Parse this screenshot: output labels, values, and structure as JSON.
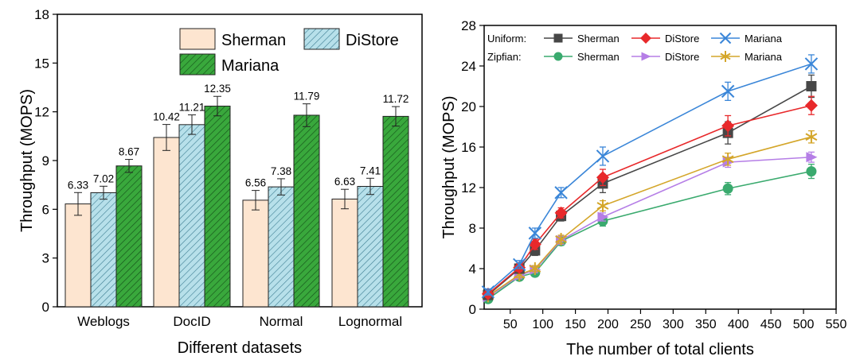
{
  "chart_data": [
    {
      "type": "bar",
      "title": "",
      "xlabel": "Different datasets",
      "ylabel": "Throughput (MOPS)",
      "categories": [
        "Weblogs",
        "DocID",
        "Normal",
        "Lognormal"
      ],
      "ylim": [
        0,
        18
      ],
      "yticks": [
        "0",
        "3",
        "6",
        "9",
        "12",
        "15",
        "18"
      ],
      "legend_position": "top-right",
      "series": [
        {
          "name": "Sherman",
          "values": [
            6.33,
            10.42,
            6.56,
            6.63
          ],
          "labels": [
            "6.33",
            "10.42",
            "6.56",
            "6.63"
          ],
          "errors": [
            0.7,
            0.8,
            0.6,
            0.6
          ],
          "color": "#fde5d0",
          "pattern": "none"
        },
        {
          "name": "DiStore",
          "values": [
            7.02,
            11.21,
            7.38,
            7.41
          ],
          "labels": [
            "7.02",
            "11.21",
            "7.38",
            "7.41"
          ],
          "errors": [
            0.4,
            0.6,
            0.5,
            0.5
          ],
          "color": "#b7e0ea",
          "pattern": "hatch"
        },
        {
          "name": "Mariana",
          "values": [
            8.67,
            12.35,
            11.79,
            11.72
          ],
          "labels": [
            "8.67",
            "12.35",
            "11.79",
            "11.72"
          ],
          "errors": [
            0.4,
            0.6,
            0.7,
            0.6
          ],
          "color": "#39a83c",
          "pattern": "hatch"
        }
      ]
    },
    {
      "type": "line",
      "title": "",
      "xlabel": "The number of total clients",
      "ylabel": "Throughput (MOPS)",
      "x": [
        16,
        64,
        88,
        128,
        192,
        384,
        512
      ],
      "xlim": [
        10,
        550
      ],
      "xticks": [
        "50",
        "100",
        "150",
        "200",
        "250",
        "300",
        "350",
        "400",
        "450",
        "500",
        "550"
      ],
      "ylim": [
        0,
        28
      ],
      "yticks": [
        "0",
        "4",
        "8",
        "12",
        "16",
        "20",
        "24",
        "28"
      ],
      "legend_position": "top-left",
      "legend_groups": [
        "Uniform:",
        "Zipfian:"
      ],
      "series": [
        {
          "name": "Sherman",
          "group": "Uniform",
          "color": "#474747",
          "marker": "square",
          "values": [
            1.4,
            4.0,
            5.8,
            9.2,
            12.4,
            17.4,
            22.0
          ],
          "errors": [
            0.3,
            0.4,
            0.5,
            0.5,
            0.9,
            1.1,
            1.1
          ]
        },
        {
          "name": "DiStore",
          "group": "Uniform",
          "color": "#e8292b",
          "marker": "diamond",
          "values": [
            1.5,
            4.1,
            6.4,
            9.5,
            13.0,
            18.1,
            20.1
          ],
          "errors": [
            0.3,
            0.4,
            0.5,
            0.5,
            0.8,
            1.0,
            0.9
          ]
        },
        {
          "name": "Mariana",
          "group": "Uniform",
          "color": "#3a86d8",
          "marker": "x",
          "values": [
            1.7,
            4.4,
            7.5,
            11.5,
            15.1,
            21.5,
            24.2
          ],
          "errors": [
            0.3,
            0.4,
            0.5,
            0.5,
            0.9,
            0.9,
            0.9
          ]
        },
        {
          "name": "Sherman",
          "group": "Zipfian",
          "color": "#3aaa6e",
          "marker": "circle",
          "values": [
            1.0,
            3.2,
            3.6,
            6.7,
            8.7,
            11.9,
            13.6
          ],
          "errors": [
            0.2,
            0.3,
            0.3,
            0.4,
            0.5,
            0.6,
            0.7
          ]
        },
        {
          "name": "DiStore",
          "group": "Zipfian",
          "color": "#b57ee6",
          "marker": "triangle-right",
          "values": [
            1.2,
            3.3,
            3.9,
            6.8,
            9.1,
            14.5,
            15.0
          ],
          "errors": [
            0.2,
            0.3,
            0.3,
            0.4,
            0.4,
            0.5,
            0.5
          ]
        },
        {
          "name": "Mariana",
          "group": "Zipfian",
          "color": "#d4a62a",
          "marker": "star",
          "values": [
            1.3,
            3.4,
            4.0,
            6.9,
            10.2,
            14.8,
            17.0
          ],
          "errors": [
            0.2,
            0.3,
            0.3,
            0.4,
            0.5,
            0.6,
            0.6
          ]
        }
      ]
    }
  ]
}
